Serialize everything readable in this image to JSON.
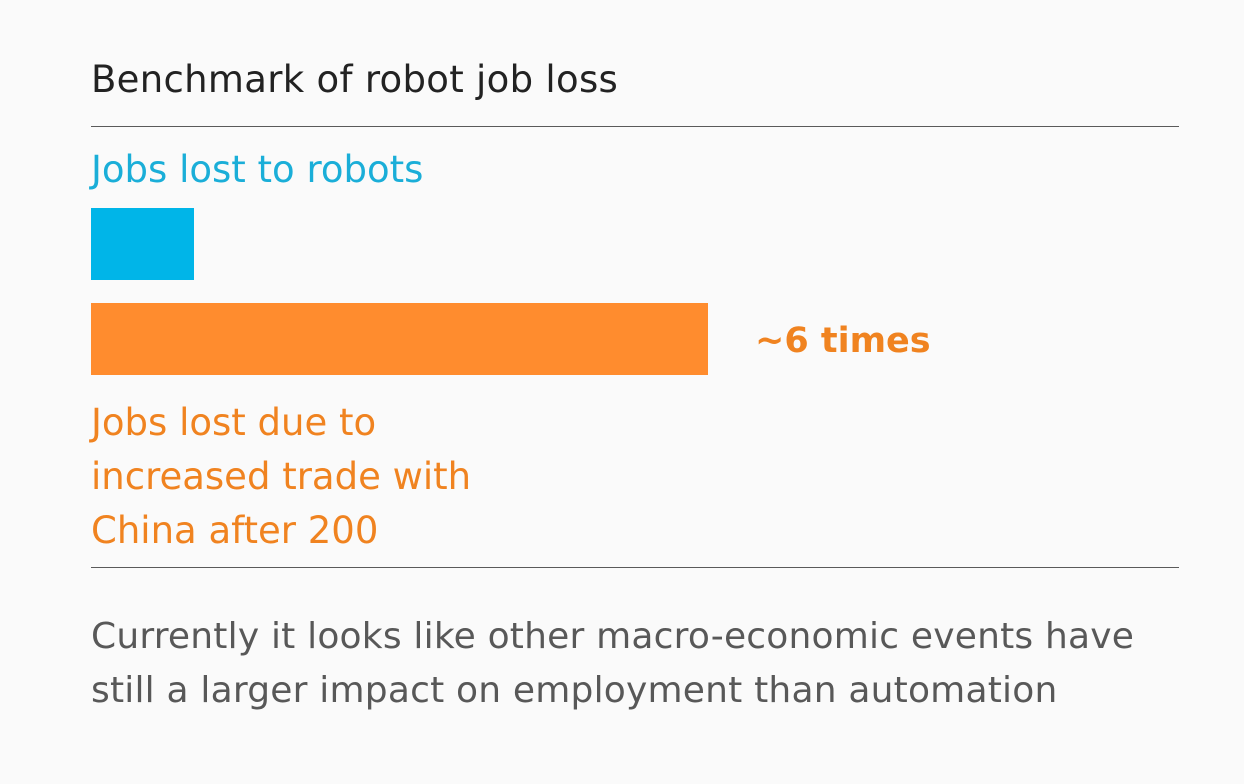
{
  "chart_data": {
    "type": "bar",
    "orientation": "horizontal",
    "title": "Benchmark of robot job loss",
    "categories": [
      "Jobs lost to robots",
      "Jobs lost due to increased trade with China after 200"
    ],
    "values": [
      1,
      6
    ],
    "colors": [
      "#00b5e8",
      "#ff8c2e"
    ],
    "annotation": "~6 times",
    "label_lines": {
      "robots": [
        "Jobs lost to robots"
      ],
      "trade": [
        "Jobs lost due to",
        "increased trade with",
        "China after 200"
      ]
    },
    "grid": false,
    "legend": "none"
  },
  "conclusion_lines": [
    "Currently it looks like other macro-economic events have",
    "still a larger impact on employment than automation"
  ]
}
